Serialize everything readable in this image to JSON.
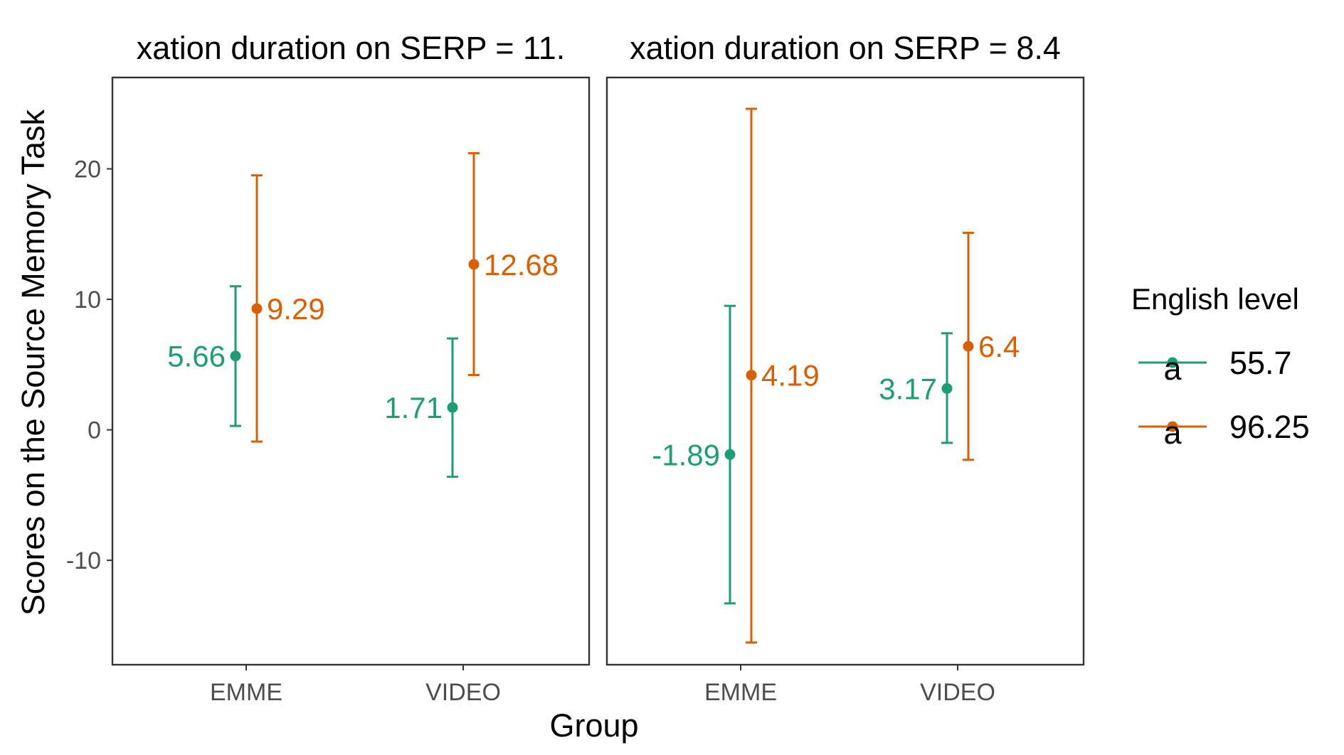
{
  "chart_data": {
    "type": "scatter",
    "xlabel": "Group",
    "ylabel": "Scores on the Source Memory Task",
    "categories": [
      "EMME",
      "VIDEO"
    ],
    "ylim": [
      -18,
      27
    ],
    "yticks": [
      -10,
      0,
      10,
      20
    ],
    "grid": false,
    "legend": {
      "title": "English level",
      "position": "right",
      "key_glyph_text": "a",
      "entries": [
        {
          "name": "55.7",
          "color": "#1b9e77"
        },
        {
          "name": "96.25",
          "color": "#d95f02"
        }
      ]
    },
    "panels": [
      {
        "strip_label": "xation duration on SERP = 11.",
        "series": [
          {
            "name": "55.7",
            "color": "#1b9e77",
            "points": [
              {
                "category": "EMME",
                "value": 5.66,
                "lower": 0.3,
                "upper": 11.0,
                "label": "5.66"
              },
              {
                "category": "VIDEO",
                "value": 1.71,
                "lower": -3.6,
                "upper": 7.0,
                "label": "1.71"
              }
            ]
          },
          {
            "name": "96.25",
            "color": "#d95f02",
            "points": [
              {
                "category": "EMME",
                "value": 9.29,
                "lower": -0.9,
                "upper": 19.5,
                "label": "9.29"
              },
              {
                "category": "VIDEO",
                "value": 12.68,
                "lower": 4.2,
                "upper": 21.2,
                "label": "12.68"
              }
            ]
          }
        ]
      },
      {
        "strip_label": "xation duration on SERP = 8.4",
        "series": [
          {
            "name": "55.7",
            "color": "#1b9e77",
            "points": [
              {
                "category": "EMME",
                "value": -1.89,
                "lower": -13.3,
                "upper": 9.5,
                "label": "-1.89"
              },
              {
                "category": "VIDEO",
                "value": 3.17,
                "lower": -1.0,
                "upper": 7.4,
                "label": "3.17"
              }
            ]
          },
          {
            "name": "96.25",
            "color": "#d95f02",
            "points": [
              {
                "category": "EMME",
                "value": 4.19,
                "lower": -16.3,
                "upper": 24.6,
                "label": "4.19"
              },
              {
                "category": "VIDEO",
                "value": 6.4,
                "lower": -2.3,
                "upper": 15.1,
                "label": "6.4"
              }
            ]
          }
        ]
      }
    ]
  }
}
